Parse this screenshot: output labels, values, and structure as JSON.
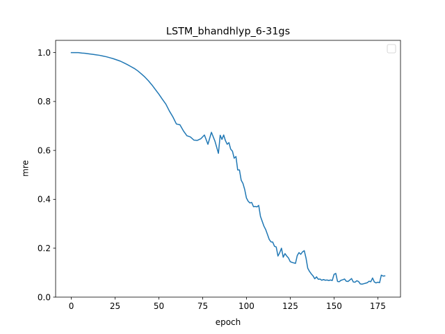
{
  "chart_data": {
    "type": "line",
    "title": "LSTM_bhandhlyp_6-31gs",
    "xlabel": "epoch",
    "ylabel": "mre",
    "xlim": [
      -8.95,
      187.95
    ],
    "ylim": [
      0.0,
      1.05
    ],
    "xticks": [
      0,
      25,
      50,
      75,
      100,
      125,
      150,
      175
    ],
    "xtick_labels": [
      "0",
      "25",
      "50",
      "75",
      "100",
      "125",
      "150",
      "175"
    ],
    "yticks": [
      0.0,
      0.2,
      0.4,
      0.6,
      0.8,
      1.0
    ],
    "ytick_labels": [
      "0.0",
      "0.2",
      "0.4",
      "0.6",
      "0.8",
      "1.0"
    ],
    "grid": false,
    "legend": "top-right, empty",
    "series": [
      {
        "name": "",
        "color": "#1f77b4",
        "x": [
          0,
          2,
          4,
          6,
          8,
          10,
          12,
          14,
          16,
          18,
          20,
          22,
          24,
          26,
          28,
          30,
          32,
          34,
          36,
          38,
          40,
          42,
          44,
          46,
          48,
          50,
          52,
          54,
          56,
          58,
          60,
          62,
          64,
          66,
          68,
          70,
          72,
          74,
          76,
          78,
          80,
          82,
          84,
          85,
          86,
          87,
          88,
          89,
          90,
          91,
          92,
          93,
          94,
          95,
          96,
          97,
          98,
          99,
          100,
          101,
          102,
          103,
          104,
          105,
          106,
          107,
          108,
          109,
          110,
          111,
          112,
          113,
          114,
          115,
          116,
          117,
          118,
          119,
          120,
          121,
          122,
          123,
          124,
          125,
          126,
          127,
          128,
          129,
          130,
          131,
          132,
          133,
          134,
          135,
          136,
          137,
          138,
          139,
          140,
          141,
          142,
          143,
          144,
          145,
          146,
          147,
          148,
          149,
          150,
          151,
          152,
          153,
          154,
          155,
          156,
          157,
          158,
          159,
          160,
          161,
          162,
          163,
          164,
          165,
          166,
          167,
          168,
          169,
          170,
          171,
          172,
          173,
          174,
          175,
          176,
          177,
          178,
          179
        ],
        "y": [
          1.0,
          1.0,
          1.0,
          0.998,
          0.997,
          0.995,
          0.993,
          0.991,
          0.989,
          0.986,
          0.983,
          0.979,
          0.975,
          0.97,
          0.965,
          0.958,
          0.951,
          0.943,
          0.935,
          0.925,
          0.913,
          0.9,
          0.885,
          0.868,
          0.849,
          0.83,
          0.809,
          0.789,
          0.761,
          0.737,
          0.708,
          0.705,
          0.68,
          0.66,
          0.655,
          0.642,
          0.641,
          0.648,
          0.663,
          0.625,
          0.674,
          0.638,
          0.588,
          0.662,
          0.645,
          0.663,
          0.64,
          0.625,
          0.632,
          0.605,
          0.597,
          0.568,
          0.575,
          0.52,
          0.52,
          0.478,
          0.465,
          0.44,
          0.405,
          0.392,
          0.385,
          0.387,
          0.37,
          0.371,
          0.369,
          0.375,
          0.33,
          0.31,
          0.29,
          0.276,
          0.256,
          0.236,
          0.226,
          0.225,
          0.208,
          0.205,
          0.168,
          0.182,
          0.2,
          0.163,
          0.178,
          0.168,
          0.16,
          0.145,
          0.142,
          0.14,
          0.138,
          0.17,
          0.182,
          0.175,
          0.185,
          0.19,
          0.16,
          0.118,
          0.105,
          0.095,
          0.087,
          0.075,
          0.083,
          0.073,
          0.074,
          0.069,
          0.072,
          0.069,
          0.07,
          0.068,
          0.07,
          0.068,
          0.093,
          0.097,
          0.064,
          0.063,
          0.069,
          0.071,
          0.074,
          0.065,
          0.064,
          0.07,
          0.076,
          0.062,
          0.061,
          0.067,
          0.064,
          0.054,
          0.053,
          0.055,
          0.057,
          0.059,
          0.065,
          0.063,
          0.078,
          0.062,
          0.058,
          0.061,
          0.059,
          0.09,
          0.086,
          0.087
        ]
      }
    ]
  }
}
